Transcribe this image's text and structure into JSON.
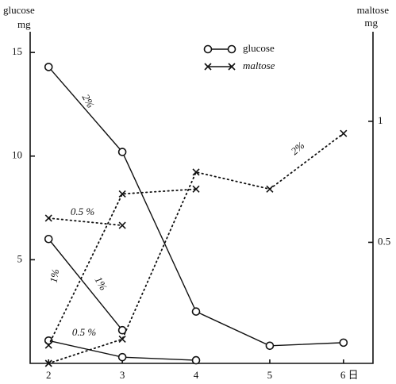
{
  "chart_data": {
    "type": "line",
    "ylabel": [
      "glucose",
      "mg"
    ],
    "y2label": [
      "maltose",
      "mg"
    ],
    "x": [
      2,
      3,
      4,
      5,
      6
    ],
    "xticks": [
      2,
      3,
      4,
      5,
      {
        "value": 6,
        "label": "6 日"
      }
    ],
    "xlim": [
      1.75,
      6.4
    ],
    "ylim": [
      0,
      16
    ],
    "yticks": [
      5,
      10,
      15
    ],
    "y2lim": [
      0,
      1.37
    ],
    "y2ticks": [
      0.5,
      1
    ],
    "legend": [
      {
        "label": "glucose",
        "marker": "circle",
        "dash": "solid"
      },
      {
        "label": "maltose",
        "marker": "cross",
        "dash": "solid"
      }
    ],
    "series": [
      {
        "name": "2%",
        "marker": "circle",
        "dash": "solid",
        "color": "#111",
        "values": [
          14.3,
          10.2,
          2.5,
          0.85,
          1.0
        ]
      },
      {
        "name": "1%",
        "marker": "circle",
        "dash": "solid",
        "color": "#111",
        "values": [
          6.0,
          1.6,
          null,
          null,
          null
        ]
      },
      {
        "name": "0.5 %",
        "marker": "circle",
        "dash": "solid",
        "color": "#111",
        "values": [
          1.1,
          0.3,
          0.15,
          null,
          null
        ]
      },
      {
        "name": "0.5 %",
        "marker": "cross",
        "dash": "dotted",
        "axis": "y2",
        "color": "#111",
        "values": [
          0.6,
          0.57,
          null,
          null,
          null
        ]
      },
      {
        "name": "1%",
        "marker": "cross",
        "dash": "dotted",
        "axis": "y2",
        "color": "#111",
        "values": [
          0.075,
          0.7,
          0.72,
          null,
          null
        ]
      },
      {
        "name": "2%",
        "marker": "cross",
        "dash": "dotted",
        "axis": "y2",
        "color": "#111",
        "values": [
          0,
          0.1,
          0.79,
          0.72,
          0.95
        ]
      }
    ]
  }
}
